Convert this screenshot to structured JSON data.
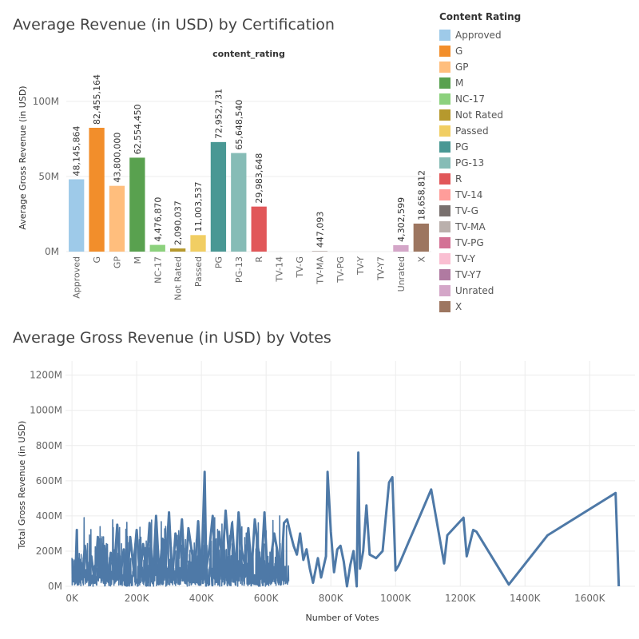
{
  "chart_data": [
    {
      "type": "bar",
      "title": "Average Revenue (in USD) by Certification",
      "subtitle": "content_rating",
      "ylabel": "Average Gross Revenue (in USD)",
      "xlabel": "",
      "ylim": [
        0,
        125000000
      ],
      "yticks": [
        {
          "value": 0,
          "label": "0M"
        },
        {
          "value": 50000000,
          "label": "50M"
        },
        {
          "value": 100000000,
          "label": "100M"
        }
      ],
      "categories": [
        "Approved",
        "G",
        "GP",
        "M",
        "NC-17",
        "Not Rated",
        "Passed",
        "PG",
        "PG-13",
        "R",
        "TV-14",
        "TV-G",
        "TV-MA",
        "TV-PG",
        "TV-Y",
        "TV-Y7",
        "Unrated",
        "X"
      ],
      "values": [
        48145864,
        82455164,
        43800000,
        62554450,
        4476870,
        2090037,
        11003537,
        72952731,
        65648540,
        29983648,
        null,
        null,
        447093,
        null,
        null,
        null,
        4302599,
        18658812
      ],
      "data_labels": [
        "48,145,864",
        "82,455,164",
        "43,800,000",
        "62,554,450",
        "4,476,870",
        "2,090,037",
        "11,003,537",
        "72,952,731",
        "65,648,540",
        "29,983,648",
        "",
        "",
        "447,093",
        "",
        "",
        "",
        "4,302,599",
        "18,658,812"
      ],
      "colors": [
        "#9ecae9",
        "#f28e2b",
        "#ffbe7d",
        "#59a14f",
        "#8cd17d",
        "#b6992d",
        "#f1ce63",
        "#499894",
        "#86bcb6",
        "#e15759",
        "#ff9d9a",
        "#79706e",
        "#bab0ac",
        "#d37295",
        "#fabfd2",
        "#b07aa1",
        "#d4a6c8",
        "#9d7660"
      ],
      "grid": true,
      "legend": {
        "title": "Content Rating",
        "placement": "right",
        "entries": [
          "Approved",
          "G",
          "GP",
          "M",
          "NC-17",
          "Not Rated",
          "Passed",
          "PG",
          "PG-13",
          "R",
          "TV-14",
          "TV-G",
          "TV-MA",
          "TV-PG",
          "TV-Y",
          "TV-Y7",
          "Unrated",
          "X"
        ]
      }
    },
    {
      "type": "line",
      "title": "Average Gross Revenue (in USD) by Votes",
      "xlabel": "Number of Votes",
      "ylabel": "Total Gross Revenue (in USD)",
      "xlim": [
        -20000,
        1740000
      ],
      "ylim": [
        0,
        1280000000
      ],
      "xticks": [
        {
          "value": 0,
          "label": "0K"
        },
        {
          "value": 200000,
          "label": "200K"
        },
        {
          "value": 400000,
          "label": "400K"
        },
        {
          "value": 600000,
          "label": "600K"
        },
        {
          "value": 800000,
          "label": "800K"
        },
        {
          "value": 1000000,
          "label": "1000K"
        },
        {
          "value": 1200000,
          "label": "1200K"
        },
        {
          "value": 1400000,
          "label": "1400K"
        },
        {
          "value": 1600000,
          "label": "1600K"
        }
      ],
      "yticks": [
        {
          "value": 0,
          "label": "0M"
        },
        {
          "value": 200000000,
          "label": "200M"
        },
        {
          "value": 400000000,
          "label": "400M"
        },
        {
          "value": 600000000,
          "label": "600M"
        },
        {
          "value": 800000000,
          "label": "800M"
        },
        {
          "value": 1000000000,
          "label": "1000M"
        },
        {
          "value": 1200000000,
          "label": "1200M"
        }
      ],
      "series_color": "#4e79a7",
      "grid": true,
      "dense_region": {
        "x_from": 0,
        "x_to": 670000,
        "y_min": 0,
        "y_max": 430000000
      },
      "x": [
        5000,
        10000,
        15000,
        18000,
        25000,
        32000,
        40000,
        50000,
        60000,
        70000,
        80000,
        90000,
        100000,
        110000,
        120000,
        130000,
        140000,
        150000,
        160000,
        170000,
        180000,
        190000,
        200000,
        210000,
        220000,
        230000,
        240000,
        250000,
        260000,
        270000,
        280000,
        290000,
        300000,
        310000,
        320000,
        330000,
        340000,
        350000,
        360000,
        370000,
        380000,
        390000,
        400000,
        410000,
        415000,
        425000,
        435000,
        445000,
        455000,
        465000,
        475000,
        485000,
        495000,
        505000,
        515000,
        525000,
        535000,
        545000,
        555000,
        565000,
        575000,
        585000,
        595000,
        605000,
        615000,
        625000,
        635000,
        645000,
        655000,
        665000,
        675000,
        685000,
        695000,
        705000,
        715000,
        725000,
        735000,
        745000,
        760000,
        770000,
        785000,
        790000,
        800000,
        810000,
        820000,
        830000,
        840000,
        850000,
        860000,
        870000,
        880000,
        885000,
        890000,
        900000,
        910000,
        920000,
        940000,
        960000,
        980000,
        990000,
        1000000,
        1010000,
        1040000,
        1080000,
        1110000,
        1150000,
        1160000,
        1210000,
        1220000,
        1240000,
        1250000,
        1350000,
        1470000,
        1680000,
        1690000
      ],
      "y": [
        80000000,
        20000000,
        320000000,
        10000000,
        150000000,
        40000000,
        230000000,
        60000000,
        170000000,
        20000000,
        280000000,
        100000000,
        230000000,
        30000000,
        190000000,
        80000000,
        350000000,
        60000000,
        210000000,
        20000000,
        280000000,
        110000000,
        320000000,
        50000000,
        240000000,
        90000000,
        360000000,
        30000000,
        400000000,
        60000000,
        270000000,
        120000000,
        420000000,
        40000000,
        300000000,
        160000000,
        380000000,
        20000000,
        330000000,
        200000000,
        100000000,
        370000000,
        50000000,
        650000000,
        100000000,
        220000000,
        400000000,
        60000000,
        310000000,
        140000000,
        430000000,
        180000000,
        360000000,
        70000000,
        420000000,
        200000000,
        120000000,
        330000000,
        90000000,
        380000000,
        220000000,
        90000000,
        420000000,
        30000000,
        160000000,
        300000000,
        200000000,
        10000000,
        360000000,
        380000000,
        300000000,
        230000000,
        180000000,
        300000000,
        150000000,
        210000000,
        100000000,
        20000000,
        160000000,
        50000000,
        170000000,
        650000000,
        310000000,
        80000000,
        210000000,
        230000000,
        140000000,
        0,
        120000000,
        200000000,
        0,
        760000000,
        100000000,
        200000000,
        460000000,
        180000000,
        160000000,
        200000000,
        590000000,
        620000000,
        90000000,
        120000000,
        250000000,
        420000000,
        550000000,
        130000000,
        290000000,
        390000000,
        170000000,
        320000000,
        310000000,
        10000000,
        290000000,
        530000000,
        0
      ]
    }
  ]
}
